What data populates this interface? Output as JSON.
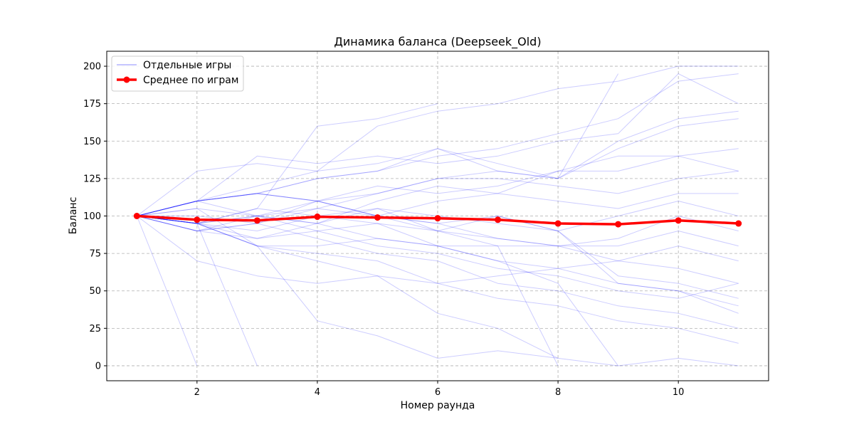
{
  "chart_data": {
    "type": "line",
    "title": "Динамика баланса (Deepseek_Old)",
    "xlabel": "Номер раунда",
    "ylabel": "Баланс",
    "xlim": [
      0.5,
      11.5
    ],
    "ylim": [
      -10,
      210
    ],
    "xticks": [
      2,
      4,
      6,
      8,
      10
    ],
    "yticks": [
      0,
      25,
      50,
      75,
      100,
      125,
      150,
      175,
      200
    ],
    "grid": true,
    "legend": {
      "placement": "top-left",
      "entries": [
        "Отдельные игры",
        "Среднее по играм"
      ]
    },
    "colors": {
      "individual": "#0000ff",
      "mean": "#ff0000",
      "grid": "#b0b0b0"
    },
    "individual_games": [
      {
        "x": [
          1,
          2,
          3,
          4,
          5,
          6,
          7,
          8,
          9,
          10,
          11
        ],
        "y": [
          100,
          130,
          135,
          130,
          160,
          170,
          175,
          185,
          190,
          200,
          200
        ]
      },
      {
        "x": [
          1,
          2,
          3,
          4,
          5,
          6,
          7,
          8,
          9,
          10,
          11
        ],
        "y": [
          100,
          110,
          140,
          135,
          140,
          135,
          140,
          150,
          155,
          195,
          175
        ]
      },
      {
        "x": [
          1,
          2,
          3,
          4,
          5,
          6
        ],
        "y": [
          100,
          95,
          105,
          160,
          165,
          175
        ]
      },
      {
        "x": [
          1,
          2,
          3,
          4,
          5,
          6,
          7,
          8,
          9
        ],
        "y": [
          100,
          110,
          115,
          125,
          130,
          145,
          135,
          125,
          195
        ]
      },
      {
        "x": [
          1,
          2,
          3,
          4,
          5,
          6,
          7,
          8,
          9,
          10,
          11
        ],
        "y": [
          100,
          110,
          115,
          125,
          130,
          140,
          145,
          155,
          165,
          190,
          195
        ]
      },
      {
        "x": [
          1,
          2,
          3,
          4,
          5,
          6,
          7,
          8,
          9,
          10,
          11
        ],
        "y": [
          100,
          110,
          120,
          130,
          135,
          145,
          130,
          125,
          150,
          165,
          170
        ]
      },
      {
        "x": [
          1,
          2,
          3,
          4,
          5,
          6,
          7,
          8,
          9,
          10,
          11
        ],
        "y": [
          100,
          95,
          100,
          110,
          115,
          125,
          130,
          125,
          145,
          160,
          165
        ]
      },
      {
        "x": [
          1,
          2,
          3,
          4,
          5,
          6,
          7,
          8,
          9,
          10,
          11
        ],
        "y": [
          100,
          90,
          95,
          110,
          120,
          115,
          120,
          130,
          140,
          140,
          145
        ]
      },
      {
        "x": [
          1,
          2,
          3,
          4,
          5,
          6,
          7,
          8,
          9,
          10,
          11
        ],
        "y": [
          100,
          110,
          115,
          110,
          100,
          110,
          115,
          130,
          130,
          140,
          130
        ]
      },
      {
        "x": [
          1,
          2,
          3,
          4,
          5,
          6,
          7,
          8,
          9,
          10,
          11
        ],
        "y": [
          100,
          95,
          100,
          105,
          115,
          125,
          125,
          120,
          115,
          125,
          130
        ]
      },
      {
        "x": [
          1,
          2,
          3,
          4,
          5,
          6,
          7,
          8,
          9,
          10,
          11
        ],
        "y": [
          100,
          110,
          100,
          95,
          110,
          120,
          115,
          110,
          105,
          115,
          115
        ]
      },
      {
        "x": [
          1,
          2,
          3,
          4,
          5,
          6,
          7,
          8,
          9,
          10,
          11
        ],
        "y": [
          100,
          95,
          90,
          100,
          105,
          100,
          95,
          90,
          100,
          110,
          100
        ]
      },
      {
        "x": [
          1,
          2,
          3,
          4,
          5,
          6,
          7,
          8,
          9,
          10,
          11
        ],
        "y": [
          100,
          90,
          85,
          95,
          105,
          90,
          85,
          80,
          85,
          100,
          90
        ]
      },
      {
        "x": [
          1,
          2,
          3,
          4,
          5,
          6,
          7,
          8,
          9,
          10,
          11
        ],
        "y": [
          100,
          95,
          80,
          80,
          85,
          80,
          80,
          80,
          80,
          90,
          80
        ]
      },
      {
        "x": [
          1,
          2,
          3,
          4,
          5,
          6,
          7,
          8,
          9,
          10,
          11
        ],
        "y": [
          100,
          110,
          115,
          110,
          100,
          95,
          85,
          80,
          70,
          65,
          55
        ]
      },
      {
        "x": [
          1,
          2,
          3,
          4,
          5,
          6,
          7,
          8,
          9,
          10,
          11
        ],
        "y": [
          100,
          90,
          100,
          95,
          85,
          80,
          70,
          65,
          55,
          50,
          40
        ]
      },
      {
        "x": [
          1,
          2,
          3,
          4,
          5,
          6,
          7,
          8,
          9,
          10,
          11
        ],
        "y": [
          100,
          95,
          85,
          90,
          80,
          75,
          65,
          60,
          50,
          45,
          55
        ]
      },
      {
        "x": [
          1,
          2,
          3,
          4,
          5,
          6,
          7,
          8,
          9,
          10,
          11
        ],
        "y": [
          100,
          95,
          80,
          75,
          70,
          55,
          45,
          40,
          30,
          25,
          15
        ]
      },
      {
        "x": [
          1,
          2,
          3,
          4,
          5,
          6,
          7,
          8,
          9,
          10,
          11
        ],
        "y": [
          100,
          90,
          95,
          85,
          75,
          70,
          55,
          50,
          40,
          35,
          25
        ]
      },
      {
        "x": [
          1,
          2,
          3,
          4,
          5,
          6,
          7,
          8,
          9,
          10,
          11
        ],
        "y": [
          100,
          70,
          60,
          55,
          60,
          55,
          60,
          65,
          70,
          80,
          70
        ]
      },
      {
        "x": [
          1,
          2,
          3,
          4,
          5,
          6,
          7,
          8,
          9,
          10,
          11
        ],
        "y": [
          100,
          95,
          80,
          70,
          60,
          35,
          25,
          5,
          0,
          5,
          0
        ]
      },
      {
        "x": [
          1,
          2,
          3,
          4,
          5,
          6,
          7,
          8
        ],
        "y": [
          100,
          105,
          80,
          30,
          20,
          5,
          10,
          5
        ]
      },
      {
        "x": [
          1,
          2
        ],
        "y": [
          100,
          0
        ]
      },
      {
        "x": [
          1,
          2,
          3
        ],
        "y": [
          100,
          95,
          0
        ]
      },
      {
        "x": [
          1,
          2,
          3,
          4,
          5,
          6,
          7,
          8,
          9,
          10,
          11
        ],
        "y": [
          100,
          110,
          115,
          110,
          100,
          95,
          100,
          90,
          60,
          55,
          45
        ]
      },
      {
        "x": [
          1,
          2,
          3,
          4,
          5,
          6,
          7,
          8
        ],
        "y": [
          100,
          95,
          105,
          100,
          95,
          90,
          80,
          0
        ]
      },
      {
        "x": [
          1,
          2,
          3,
          4,
          5,
          6,
          7,
          8,
          9,
          10,
          11
        ],
        "y": [
          100,
          100,
          95,
          105,
          100,
          90,
          100,
          90,
          55,
          50,
          35
        ]
      },
      {
        "x": [
          1,
          2,
          3,
          4,
          5,
          6,
          7,
          8,
          9
        ],
        "y": [
          100,
          105,
          100,
          90,
          95,
          80,
          70,
          55,
          0
        ]
      }
    ],
    "mean": {
      "name": "Среднее по играм",
      "x": [
        1,
        2,
        3,
        4,
        5,
        6,
        7,
        8,
        9,
        10,
        11
      ],
      "y": [
        100,
        97.5,
        97,
        99.5,
        99,
        98.5,
        97.5,
        95,
        94.5,
        97,
        95
      ]
    }
  }
}
